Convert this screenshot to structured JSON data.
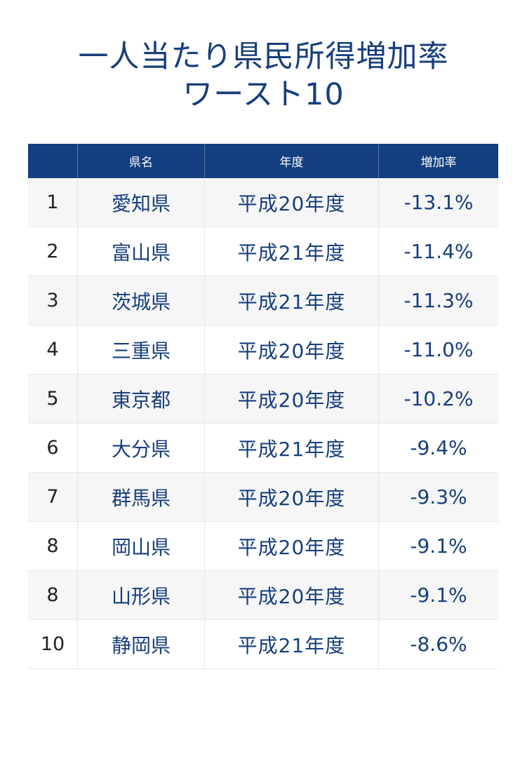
{
  "title": {
    "line1": "一人当たり県民所得増加率",
    "line2": "ワースト10"
  },
  "colors": {
    "title": "#173e7d",
    "header_bg": "#133f80",
    "header_text": "#ffffff",
    "cell_text": "#173e7d",
    "rank_text": "#222222",
    "row_alt": "#f6f6f6"
  },
  "chart_data": {
    "type": "table",
    "title": "一人当たり県民所得増加率 ワースト10",
    "columns": [
      "",
      "県名",
      "年度",
      "増加率"
    ],
    "rows": [
      {
        "rank": "1",
        "pref": "愛知県",
        "year": "平成20年度",
        "rate": "-13.1%"
      },
      {
        "rank": "2",
        "pref": "富山県",
        "year": "平成21年度",
        "rate": "-11.4%"
      },
      {
        "rank": "3",
        "pref": "茨城県",
        "year": "平成21年度",
        "rate": "-11.3%"
      },
      {
        "rank": "4",
        "pref": "三重県",
        "year": "平成20年度",
        "rate": "-11.0%"
      },
      {
        "rank": "5",
        "pref": "東京都",
        "year": "平成20年度",
        "rate": "-10.2%"
      },
      {
        "rank": "6",
        "pref": "大分県",
        "year": "平成21年度",
        "rate": "-9.4%"
      },
      {
        "rank": "7",
        "pref": "群馬県",
        "year": "平成20年度",
        "rate": "-9.3%"
      },
      {
        "rank": "8",
        "pref": "岡山県",
        "year": "平成20年度",
        "rate": "-9.1%"
      },
      {
        "rank": "8",
        "pref": "山形県",
        "year": "平成20年度",
        "rate": "-9.1%"
      },
      {
        "rank": "10",
        "pref": "静岡県",
        "year": "平成21年度",
        "rate": "-8.6%"
      }
    ]
  }
}
